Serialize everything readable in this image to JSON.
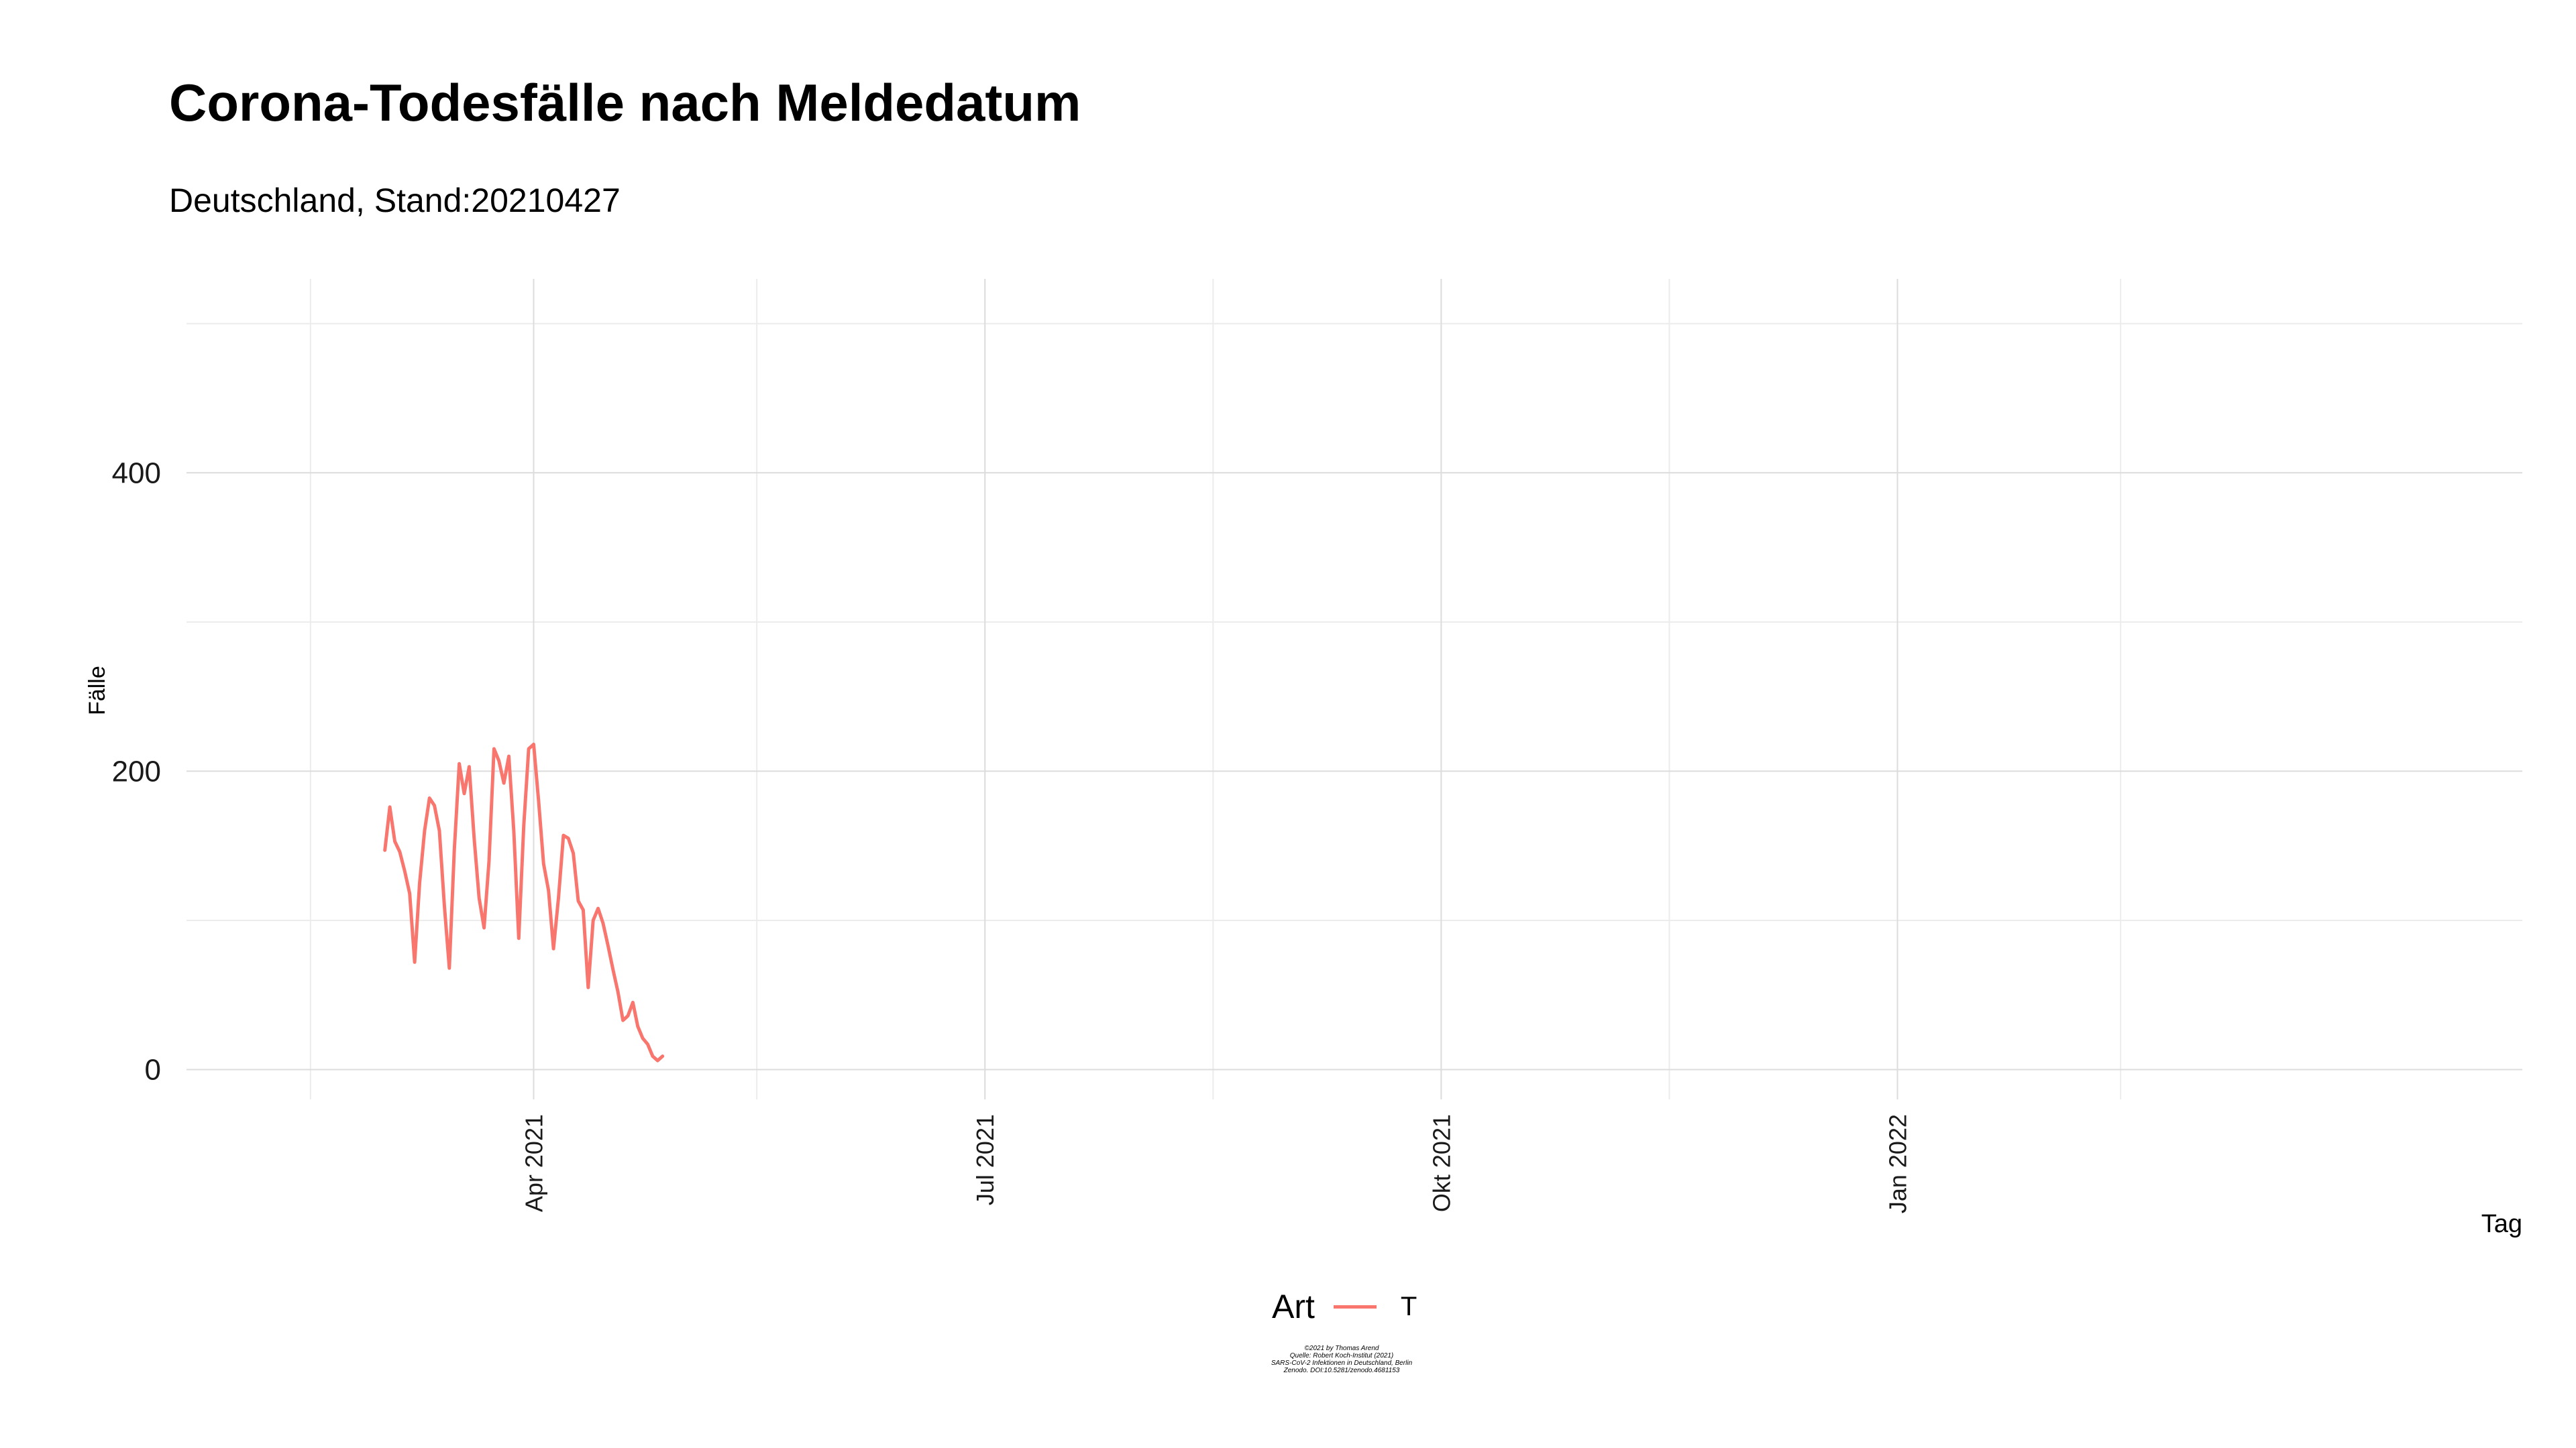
{
  "title": "Corona-Todesfälle nach Meldedatum",
  "subtitle": "Deutschland, Stand:20210427",
  "legend": {
    "title": "Art",
    "items": [
      {
        "label": "T",
        "color": "#F8766D"
      }
    ]
  },
  "caption": [
    "©2021 by Thomas Arend",
    "Quelle: Robert Koch-Institut (2021)",
    "SARS-CoV-2 Infektionen in Deutschland, Berlin",
    "Zenodo. DOI:10.5281/zenodo.4681153"
  ],
  "chart_data": {
    "type": "line",
    "title": "Corona-Todesfälle nach Meldedatum",
    "subtitle": "Deutschland, Stand:20210427",
    "xlabel": "Tag",
    "ylabel": "Fälle",
    "x_axis": {
      "type": "date",
      "range": [
        "2021-01-21",
        "2022-05-07"
      ],
      "ticks": [
        {
          "date": "2021-04-01",
          "label": "Apr 2021"
        },
        {
          "date": "2021-07-01",
          "label": "Jul 2021"
        },
        {
          "date": "2021-10-01",
          "label": "Okt 2021"
        },
        {
          "date": "2022-01-01",
          "label": "Jan 2022"
        }
      ],
      "minor_ticks": [
        "2021-02-15",
        "2021-05-16",
        "2021-08-16",
        "2021-11-16",
        "2022-02-15"
      ]
    },
    "y_axis": {
      "range": [
        -20,
        530
      ],
      "ticks": [
        {
          "value": 0,
          "label": "0"
        },
        {
          "value": 200,
          "label": "200"
        },
        {
          "value": 400,
          "label": "400"
        }
      ],
      "minor_ticks": [
        100,
        300,
        500
      ]
    },
    "grid": true,
    "legend_position": "bottom",
    "series": [
      {
        "name": "T",
        "color": "#F8766D",
        "points": [
          [
            "2021-03-02",
            147
          ],
          [
            "2021-03-03",
            176
          ],
          [
            "2021-03-04",
            153
          ],
          [
            "2021-03-05",
            146
          ],
          [
            "2021-03-06",
            133
          ],
          [
            "2021-03-07",
            118
          ],
          [
            "2021-03-08",
            72
          ],
          [
            "2021-03-09",
            125
          ],
          [
            "2021-03-10",
            160
          ],
          [
            "2021-03-11",
            182
          ],
          [
            "2021-03-12",
            177
          ],
          [
            "2021-03-13",
            160
          ],
          [
            "2021-03-14",
            110
          ],
          [
            "2021-03-15",
            68
          ],
          [
            "2021-03-16",
            147
          ],
          [
            "2021-03-17",
            205
          ],
          [
            "2021-03-18",
            185
          ],
          [
            "2021-03-19",
            203
          ],
          [
            "2021-03-20",
            155
          ],
          [
            "2021-03-21",
            115
          ],
          [
            "2021-03-22",
            95
          ],
          [
            "2021-03-23",
            140
          ],
          [
            "2021-03-24",
            215
          ],
          [
            "2021-03-25",
            207
          ],
          [
            "2021-03-26",
            192
          ],
          [
            "2021-03-27",
            210
          ],
          [
            "2021-03-28",
            160
          ],
          [
            "2021-03-29",
            88
          ],
          [
            "2021-03-30",
            163
          ],
          [
            "2021-03-31",
            215
          ],
          [
            "2021-04-01",
            218
          ],
          [
            "2021-04-02",
            180
          ],
          [
            "2021-04-03",
            138
          ],
          [
            "2021-04-04",
            120
          ],
          [
            "2021-04-05",
            81
          ],
          [
            "2021-04-06",
            115
          ],
          [
            "2021-04-07",
            157
          ],
          [
            "2021-04-08",
            155
          ],
          [
            "2021-04-09",
            145
          ],
          [
            "2021-04-10",
            113
          ],
          [
            "2021-04-11",
            107
          ],
          [
            "2021-04-12",
            55
          ],
          [
            "2021-04-13",
            100
          ],
          [
            "2021-04-14",
            108
          ],
          [
            "2021-04-15",
            98
          ],
          [
            "2021-04-16",
            83
          ],
          [
            "2021-04-17",
            67
          ],
          [
            "2021-04-18",
            52
          ],
          [
            "2021-04-19",
            33
          ],
          [
            "2021-04-20",
            36
          ],
          [
            "2021-04-21",
            45
          ],
          [
            "2021-04-22",
            29
          ],
          [
            "2021-04-23",
            21
          ],
          [
            "2021-04-24",
            17
          ],
          [
            "2021-04-25",
            9
          ],
          [
            "2021-04-26",
            6
          ],
          [
            "2021-04-27",
            9
          ]
        ]
      }
    ]
  }
}
